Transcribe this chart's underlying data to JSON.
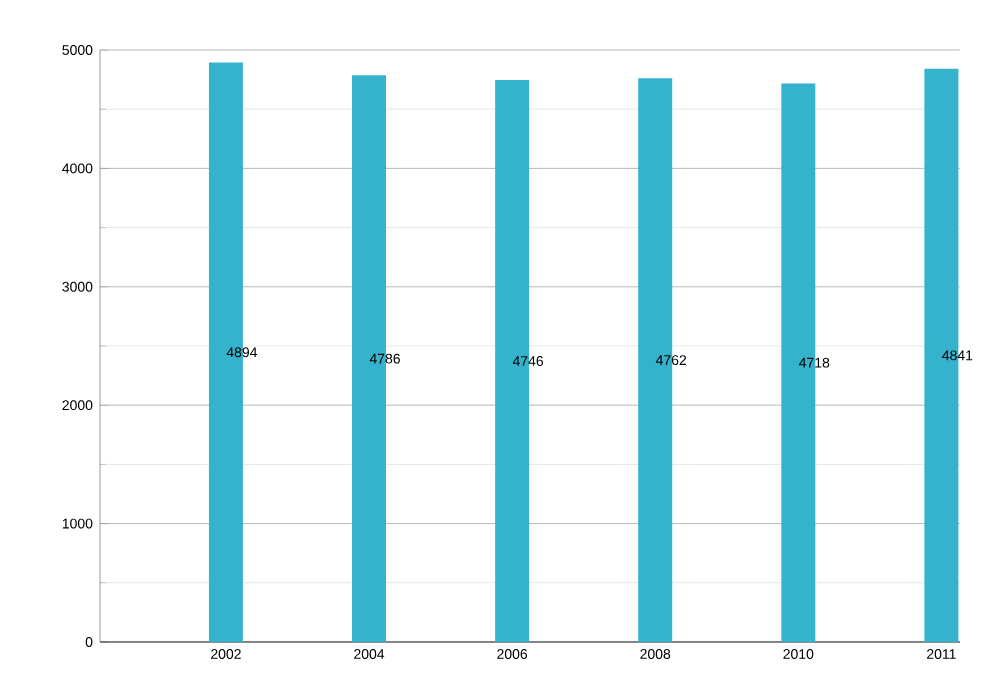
{
  "chart_data": {
    "type": "bar",
    "categories": [
      "2002",
      "2004",
      "2006",
      "2008",
      "2010",
      "2011"
    ],
    "values": [
      4894,
      4786,
      4746,
      4762,
      4718,
      4841
    ],
    "color": "#36b3cc",
    "ylim": [
      0,
      5000
    ],
    "yticks": [
      0,
      1000,
      2000,
      3000,
      4000,
      5000
    ],
    "grid": "y",
    "data_labels": true
  }
}
